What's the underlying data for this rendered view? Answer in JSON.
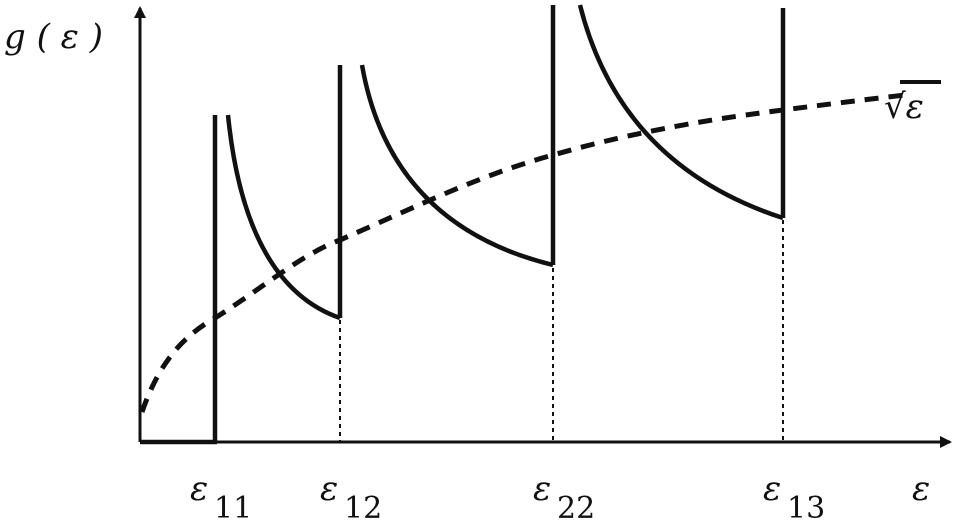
{
  "axes": {
    "y_label": "g ( ε )",
    "x_label": "ε"
  },
  "levels": [
    {
      "symbol": "ε",
      "subscript": "11"
    },
    {
      "symbol": "ε",
      "subscript": "12"
    },
    {
      "symbol": "ε",
      "subscript": "22"
    },
    {
      "symbol": "ε",
      "subscript": "13"
    }
  ],
  "curve_label": "√ε"
}
